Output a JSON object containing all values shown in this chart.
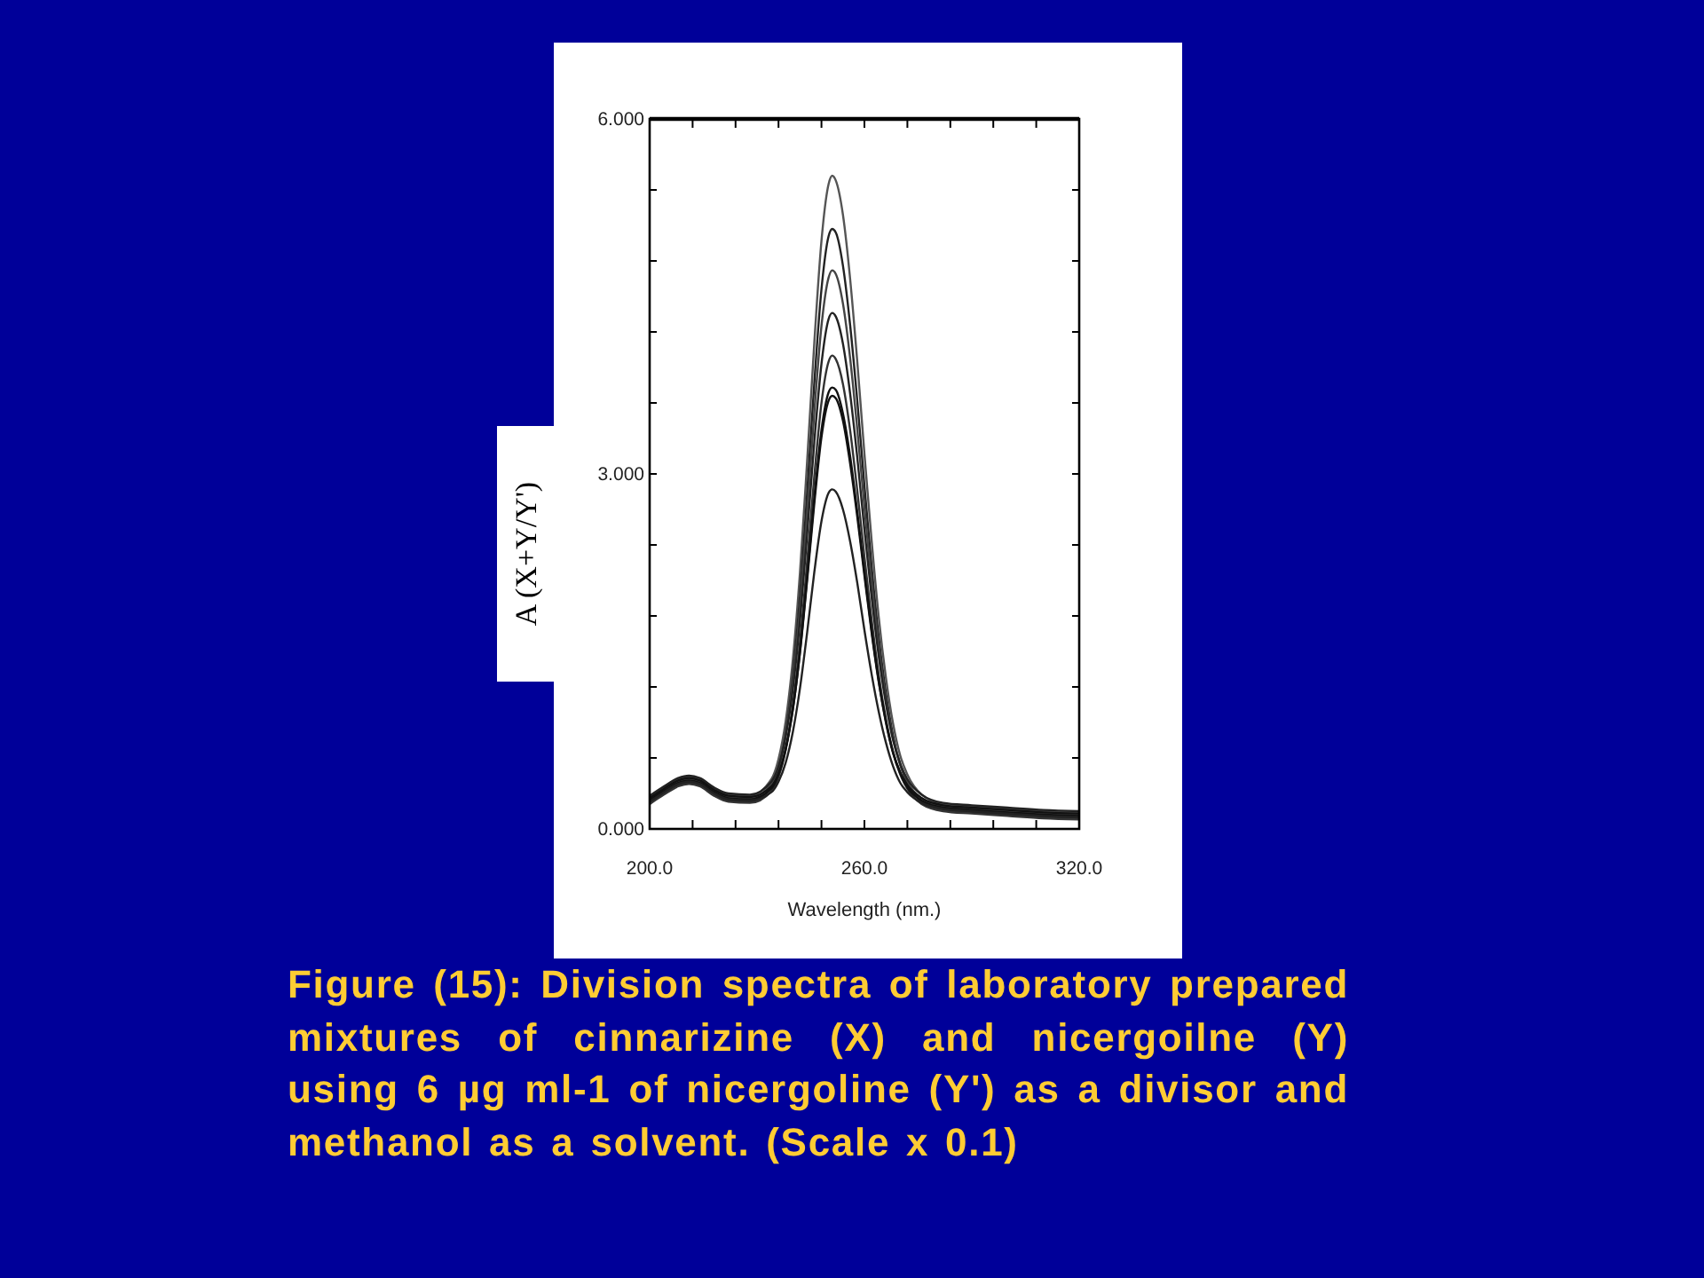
{
  "chart_data": {
    "type": "line",
    "xlabel": "Wavelength (nm.)",
    "ylabel": "A (X+Y/Y')",
    "annotations": [
      "Figure (15): Division spectra of laboratory prepared mixtures of cinnarizine (X) and nicergoilne (Y) using 6 µg ml-1 of nicergoline (Y') as a divisor and methanol as a solvent. (Scale x 0.1)"
    ],
    "xlim": [
      200,
      320
    ],
    "ylim": [
      0,
      6
    ],
    "xticks": [
      {
        "value": 200,
        "label": "200.0"
      },
      {
        "value": 212,
        "label": null
      },
      {
        "value": 224,
        "label": null
      },
      {
        "value": 236,
        "label": null
      },
      {
        "value": 248,
        "label": null
      },
      {
        "value": 260,
        "label": "260.0"
      },
      {
        "value": 272,
        "label": null
      },
      {
        "value": 284,
        "label": null
      },
      {
        "value": 296,
        "label": null
      },
      {
        "value": 308,
        "label": null
      },
      {
        "value": 320,
        "label": "320.0"
      }
    ],
    "yticks": [
      {
        "value": 0,
        "label": "0.000"
      },
      {
        "value": 0.6,
        "label": null
      },
      {
        "value": 1.2,
        "label": null
      },
      {
        "value": 1.8,
        "label": null
      },
      {
        "value": 2.4,
        "label": null
      },
      {
        "value": 3,
        "label": "3.000"
      },
      {
        "value": 3.6,
        "label": null
      },
      {
        "value": 4.2,
        "label": null
      },
      {
        "value": 4.8,
        "label": null
      },
      {
        "value": 5.4,
        "label": null
      },
      {
        "value": 6,
        "label": "6.000"
      }
    ],
    "x": [
      200,
      204,
      208,
      211,
      214,
      218,
      222,
      228,
      234,
      236,
      238,
      240,
      242,
      244,
      246,
      248,
      250,
      251,
      252,
      254,
      256,
      258,
      260,
      262,
      264,
      266,
      268,
      270,
      272,
      276,
      282,
      290,
      300,
      310,
      320
    ],
    "series": [
      {
        "color": "#555555",
        "values": [
          0.27,
          0.35,
          0.42,
          0.44,
          0.42,
          0.34,
          0.29,
          0.28,
          0.42,
          0.59,
          0.91,
          1.43,
          2.17,
          3.11,
          4.11,
          4.97,
          5.45,
          5.52,
          5.48,
          5.19,
          4.65,
          3.95,
          3.17,
          2.44,
          1.79,
          1.28,
          0.89,
          0.62,
          0.46,
          0.29,
          0.21,
          0.19,
          0.17,
          0.15,
          0.14
        ]
      },
      {
        "color": "#222222",
        "values": [
          0.22,
          0.3,
          0.37,
          0.39,
          0.37,
          0.29,
          0.24,
          0.23,
          0.36,
          0.52,
          0.81,
          1.29,
          1.97,
          2.84,
          3.77,
          4.56,
          5.01,
          5.07,
          5.04,
          4.76,
          4.26,
          3.62,
          2.9,
          2.22,
          1.62,
          1.15,
          0.79,
          0.54,
          0.39,
          0.23,
          0.16,
          0.14,
          0.12,
          0.1,
          0.09
        ]
      },
      {
        "color": "#444444",
        "values": [
          0.25,
          0.33,
          0.4,
          0.42,
          0.4,
          0.32,
          0.27,
          0.26,
          0.38,
          0.52,
          0.79,
          1.24,
          1.87,
          2.67,
          3.52,
          4.25,
          4.66,
          4.72,
          4.69,
          4.44,
          3.98,
          3.38,
          2.72,
          2.09,
          1.54,
          1.1,
          0.77,
          0.55,
          0.4,
          0.26,
          0.19,
          0.17,
          0.15,
          0.13,
          0.12
        ]
      },
      {
        "color": "#222222",
        "values": [
          0.28,
          0.36,
          0.43,
          0.45,
          0.43,
          0.35,
          0.3,
          0.29,
          0.4,
          0.53,
          0.78,
          1.18,
          1.76,
          2.49,
          3.27,
          3.93,
          4.31,
          4.36,
          4.33,
          4.1,
          3.68,
          3.14,
          2.53,
          1.96,
          1.46,
          1.06,
          0.75,
          0.55,
          0.42,
          0.29,
          0.22,
          0.2,
          0.18,
          0.16,
          0.15
        ]
      },
      {
        "color": "#333333",
        "values": [
          0.21,
          0.29,
          0.36,
          0.38,
          0.36,
          0.28,
          0.23,
          0.22,
          0.32,
          0.44,
          0.67,
          1.05,
          1.58,
          2.26,
          2.98,
          3.6,
          3.95,
          4.0,
          3.97,
          3.76,
          3.37,
          2.86,
          2.3,
          1.77,
          1.3,
          0.93,
          0.65,
          0.46,
          0.34,
          0.21,
          0.15,
          0.13,
          0.11,
          0.09,
          0.08
        ]
      },
      {
        "color": "#111111",
        "values": [
          0.24,
          0.32,
          0.39,
          0.41,
          0.39,
          0.31,
          0.26,
          0.25,
          0.34,
          0.46,
          0.67,
          1.01,
          1.5,
          2.13,
          2.8,
          3.37,
          3.69,
          3.73,
          3.71,
          3.51,
          3.15,
          2.68,
          2.17,
          1.68,
          1.25,
          0.9,
          0.64,
          0.47,
          0.35,
          0.24,
          0.18,
          0.16,
          0.14,
          0.12,
          0.11
        ]
      },
      {
        "color": "#111111",
        "values": [
          0.26,
          0.34,
          0.41,
          0.43,
          0.41,
          0.33,
          0.28,
          0.27,
          0.36,
          0.47,
          0.68,
          1.01,
          1.49,
          2.1,
          2.75,
          3.31,
          3.62,
          3.66,
          3.64,
          3.45,
          3.09,
          2.64,
          2.14,
          1.66,
          1.24,
          0.91,
          0.65,
          0.48,
          0.37,
          0.26,
          0.2,
          0.18,
          0.16,
          0.14,
          0.13
        ]
      },
      {
        "color": "#222222",
        "values": [
          0.23,
          0.31,
          0.38,
          0.4,
          0.38,
          0.3,
          0.25,
          0.24,
          0.31,
          0.4,
          0.56,
          0.82,
          1.19,
          1.66,
          2.17,
          2.6,
          2.84,
          2.87,
          2.85,
          2.7,
          2.43,
          2.08,
          1.68,
          1.31,
          0.99,
          0.73,
          0.53,
          0.39,
          0.31,
          0.22,
          0.17,
          0.15,
          0.13,
          0.11,
          0.1
        ]
      }
    ]
  }
}
